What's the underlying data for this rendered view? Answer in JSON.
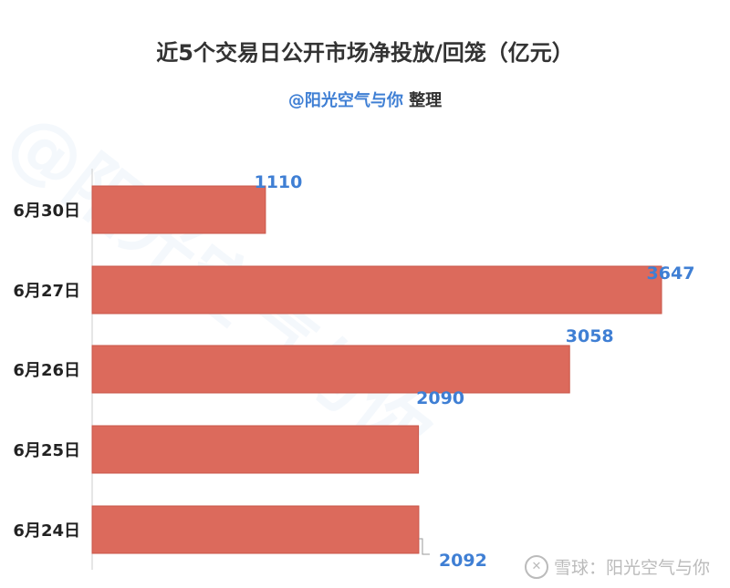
{
  "chart_data": {
    "type": "bar",
    "orientation": "horizontal",
    "title": "近5个交易日公开市场净投放/回笼（亿元）",
    "subtitle_author": "@阳光空气与你",
    "subtitle_suffix": "整理",
    "categories": [
      "6月30日",
      "6月27日",
      "6月26日",
      "6月25日",
      "6月24日"
    ],
    "values": [
      1110,
      3647,
      3058,
      2090,
      2092
    ],
    "xlim": [
      0,
      3647
    ],
    "grid": false,
    "colors": {
      "bar": "#dc6a5c",
      "bar_border": "#c9574a",
      "label": "#3f7fd4",
      "axis": "#cccccc"
    }
  },
  "watermark": "@阳光空气与你",
  "logo_text": "雪球：阳光空气与你"
}
